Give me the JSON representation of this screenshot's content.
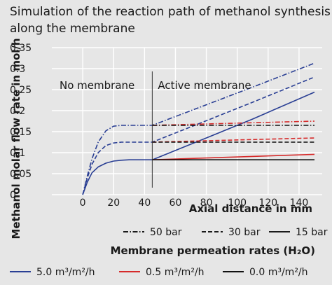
{
  "chart_data": {
    "type": "line",
    "title": "Simulation of the reaction path of methanol synthesis along the membrane",
    "title_lines": [
      "Simulation of the reaction path of methanol synthesis",
      "along the membrane"
    ],
    "xlabel": "Axial distance in mm",
    "ylabel": "Methanol molar flow rate in mol/h",
    "xlim": [
      -20,
      155
    ],
    "ylim": [
      0,
      0.35
    ],
    "xticks": [
      "0",
      "20",
      "40",
      "60",
      "80",
      "100",
      "120",
      "140"
    ],
    "yticks": [
      "0",
      "0.05",
      "0.1",
      "0.15",
      "0.2",
      "0.25",
      "0.3",
      "0.35"
    ],
    "grid": true,
    "membrane_start": 45,
    "annotations": [
      {
        "text": "No membrane"
      },
      {
        "text": "Active membrane"
      }
    ],
    "legend": {
      "pressure_styles": [
        {
          "label": "50 bar",
          "dash": "dashdot"
        },
        {
          "label": "30 bar",
          "dash": "dashed"
        },
        {
          "label": "15 bar",
          "dash": "solid"
        }
      ],
      "title": "Membrane permeation rates (H₂O)",
      "rates": [
        {
          "label": "5.0 m³/m²/h",
          "color": "#2a3f94"
        },
        {
          "label": "0.5 m³/m²/h",
          "color": "#d62b2b"
        },
        {
          "label": "0.0 m³/m²/h",
          "color": "#111111"
        }
      ]
    },
    "series": [
      {
        "pressure": "50 bar",
        "rate": "5.0 m³/m²/h",
        "dash": "dashdot",
        "color": "#2a3f94",
        "x": [
          0,
          3,
          6,
          10,
          15,
          20,
          25,
          30,
          45,
          80,
          110,
          150
        ],
        "y": [
          0,
          0.045,
          0.085,
          0.125,
          0.152,
          0.163,
          0.165,
          0.165,
          0.165,
          0.214,
          0.256,
          0.313
        ]
      },
      {
        "pressure": "30 bar",
        "rate": "5.0 m³/m²/h",
        "dash": "dashed",
        "color": "#2a3f94",
        "x": [
          0,
          3,
          6,
          10,
          15,
          20,
          25,
          30,
          45,
          80,
          110,
          150
        ],
        "y": [
          0,
          0.04,
          0.072,
          0.1,
          0.117,
          0.123,
          0.125,
          0.125,
          0.125,
          0.176,
          0.22,
          0.28
        ]
      },
      {
        "pressure": "15 bar",
        "rate": "5.0 m³/m²/h",
        "dash": "solid",
        "color": "#2a3f94",
        "x": [
          0,
          3,
          6,
          10,
          15,
          20,
          25,
          30,
          45,
          80,
          110,
          150
        ],
        "y": [
          0,
          0.03,
          0.052,
          0.066,
          0.075,
          0.08,
          0.082,
          0.083,
          0.083,
          0.135,
          0.18,
          0.244
        ]
      },
      {
        "pressure": "50 bar",
        "rate": "0.5 m³/m²/h",
        "dash": "dashdot",
        "color": "#d62b2b",
        "x": [
          45,
          150
        ],
        "y": [
          0.165,
          0.175
        ]
      },
      {
        "pressure": "30 bar",
        "rate": "0.5 m³/m²/h",
        "dash": "dashed",
        "color": "#d62b2b",
        "x": [
          45,
          150
        ],
        "y": [
          0.125,
          0.135
        ]
      },
      {
        "pressure": "15 bar",
        "rate": "0.5 m³/m²/h",
        "dash": "solid",
        "color": "#d62b2b",
        "x": [
          45,
          150
        ],
        "y": [
          0.083,
          0.096
        ]
      },
      {
        "pressure": "50 bar",
        "rate": "0.0 m³/m²/h",
        "dash": "dashdot",
        "color": "#111111",
        "x": [
          45,
          150
        ],
        "y": [
          0.165,
          0.165
        ]
      },
      {
        "pressure": "30 bar",
        "rate": "0.0 m³/m²/h",
        "dash": "dashed",
        "color": "#111111",
        "x": [
          45,
          150
        ],
        "y": [
          0.125,
          0.125
        ]
      },
      {
        "pressure": "15 bar",
        "rate": "0.0 m³/m²/h",
        "dash": "solid",
        "color": "#111111",
        "x": [
          45,
          150
        ],
        "y": [
          0.083,
          0.083
        ]
      }
    ]
  }
}
